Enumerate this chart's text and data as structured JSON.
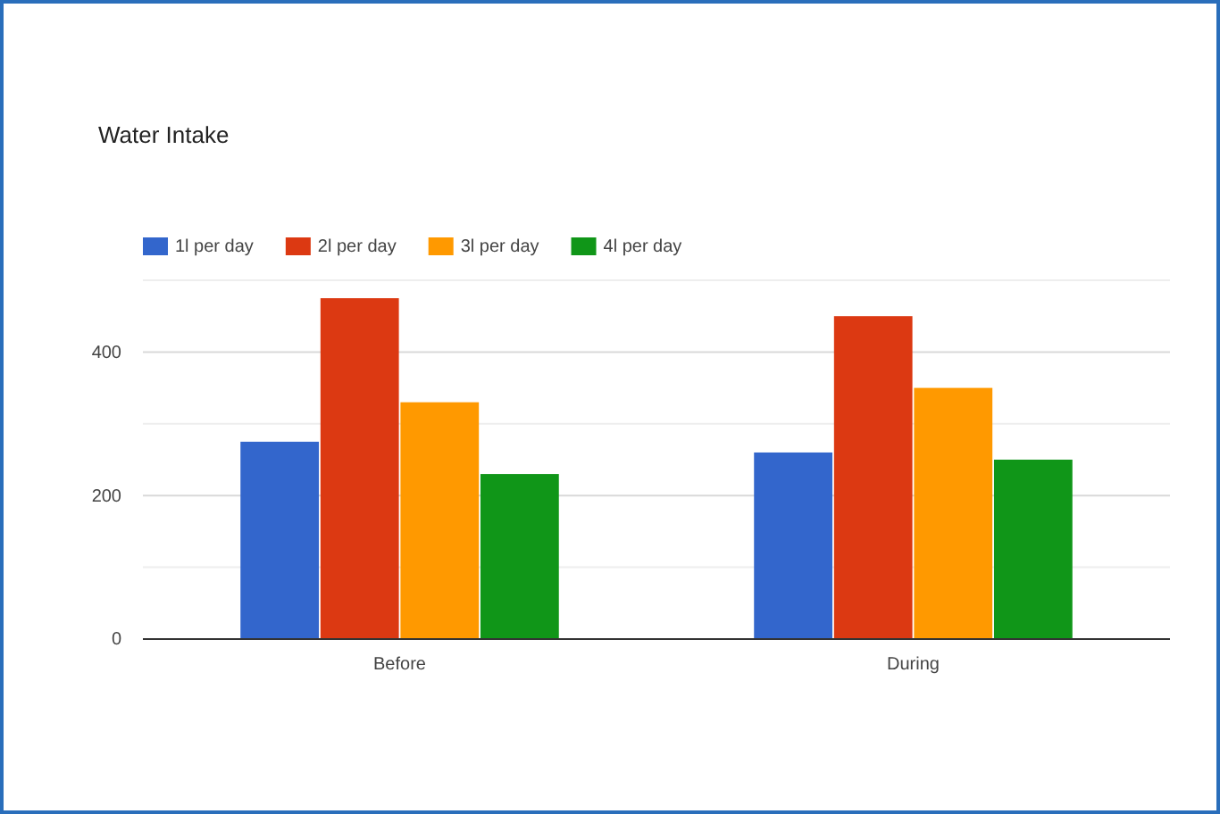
{
  "chart_data": {
    "type": "bar",
    "title": "Water Intake",
    "categories": [
      "Before",
      "During"
    ],
    "series": [
      {
        "name": "1l per day",
        "color": "#3366cc",
        "values": [
          275,
          260
        ]
      },
      {
        "name": "2l per day",
        "color": "#dc3912",
        "values": [
          475,
          450
        ]
      },
      {
        "name": "3l per day",
        "color": "#ff9900",
        "values": [
          330,
          350
        ]
      },
      {
        "name": "4l per day",
        "color": "#109618",
        "values": [
          230,
          250
        ]
      }
    ],
    "ylim": [
      0,
      500
    ],
    "yticks": [
      0,
      {
        "value": 100,
        "label": null
      },
      200,
      {
        "value": 300,
        "label": null
      },
      400,
      {
        "value": 500,
        "label": null
      }
    ],
    "grid": "y",
    "legend": "top left"
  }
}
